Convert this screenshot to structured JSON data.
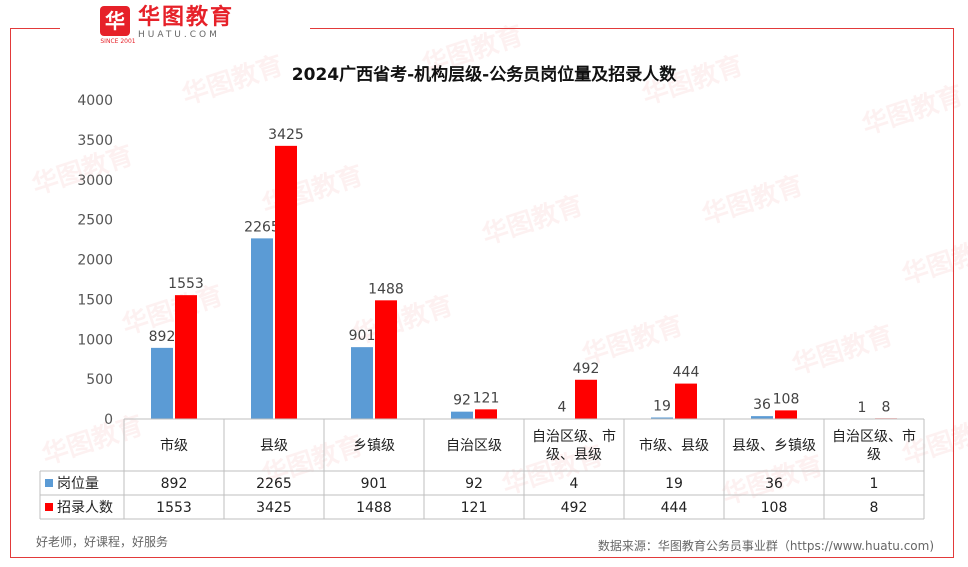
{
  "brand": {
    "name_cn": "华图教育",
    "name_en": "HUATU.COM",
    "since": "SINCE 2001",
    "mark_icon": "huatu-logo-icon"
  },
  "watermark_text": "华图教育",
  "footer": {
    "slogan": "好老师，好课程，好服务",
    "source": "数据来源：华图教育公务员事业群（https://www.huatu.com)"
  },
  "colors": {
    "frame": "#e23a3a",
    "series1": "#5b9bd5",
    "series2": "#ff0000"
  },
  "chart_data": {
    "type": "bar",
    "title": "2024广西省考-机构层级-公务员岗位量及招录人数",
    "categories": [
      "市级",
      "县级",
      "乡镇级",
      "自治区级",
      "自治区级、市级、县级",
      "市级、县级",
      "县级、乡镇级",
      "自治区级、市级"
    ],
    "categories_wrapped": [
      [
        "市级"
      ],
      [
        "县级"
      ],
      [
        "乡镇级"
      ],
      [
        "自治区级"
      ],
      [
        "自治区级、市",
        "级、县级"
      ],
      [
        "市级、县级"
      ],
      [
        "县级、乡镇级"
      ],
      [
        "自治区级、市",
        "级"
      ]
    ],
    "series": [
      {
        "name": "岗位量",
        "values": [
          892,
          2265,
          901,
          92,
          4,
          19,
          36,
          1
        ]
      },
      {
        "name": "招录人数",
        "values": [
          1553,
          3425,
          1488,
          121,
          492,
          444,
          108,
          8
        ]
      }
    ],
    "ylim": [
      0,
      4000
    ],
    "yticks": [
      0,
      500,
      1000,
      1500,
      2000,
      2500,
      3000,
      3500,
      4000
    ],
    "grid": false,
    "legend": "data-table",
    "data_table": true
  }
}
